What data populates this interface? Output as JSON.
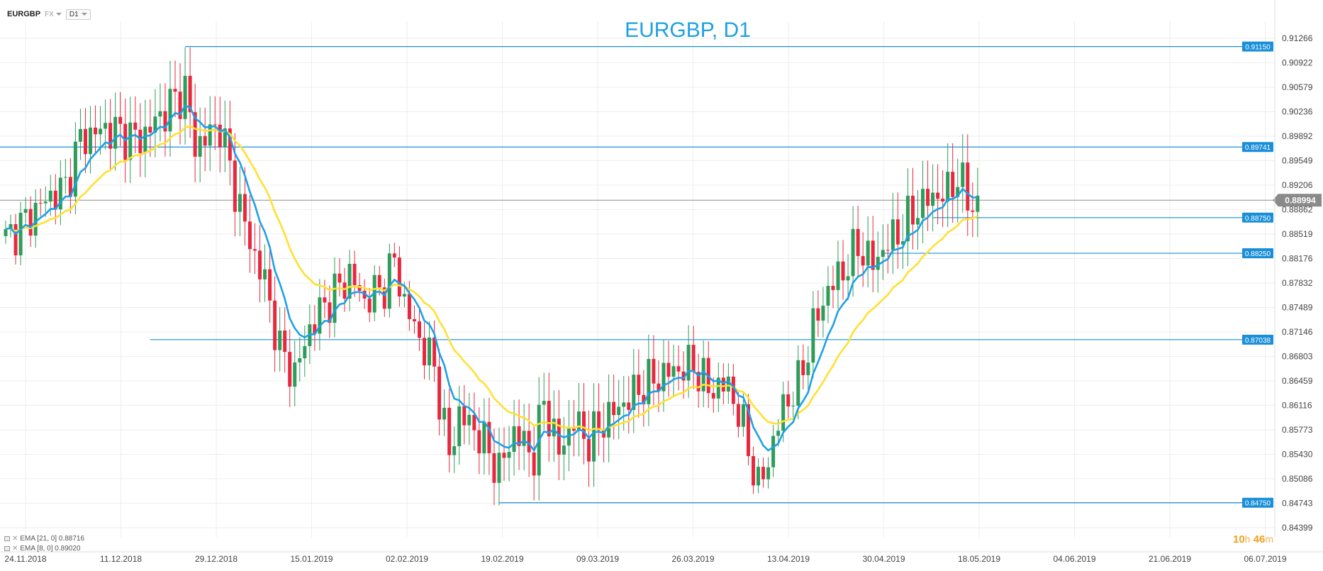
{
  "toolbar": {
    "symbol": "EURGBP",
    "market": "FX",
    "timeframe": "D1"
  },
  "legend": [
    {
      "label": "EMA [21, 0] 0.88716",
      "color": "#ffe033"
    },
    {
      "label": "EMA [8, 0] 0.89020",
      "color": "#1ea0e6"
    }
  ],
  "timer": {
    "hours": "10",
    "h_unit": "h",
    "minutes": "46",
    "m_unit": "m"
  },
  "colors": {
    "bull": "#2e9c5a",
    "bear": "#e8283e",
    "ema8": "#1ea0e6",
    "ema21": "#ffe033",
    "level": "#1a8fd8",
    "current": "#8a8a8a",
    "grid": "#eeeeee",
    "title": "#1ea0e6"
  },
  "chart_data": {
    "type": "candlestick",
    "title": "EURGBP, D1",
    "ylim": [
      0.84399,
      0.91266
    ],
    "y_ticks": [
      "0.91266",
      "0.90922",
      "0.90579",
      "0.90236",
      "0.89892",
      "0.89549",
      "0.89206",
      "0.88862",
      "0.88519",
      "0.88176",
      "0.87832",
      "0.87489",
      "0.87146",
      "0.86803",
      "0.86459",
      "0.86116",
      "0.85773",
      "0.85430",
      "0.85086",
      "0.84743",
      "0.84399"
    ],
    "x_ticks": [
      "24.11.2018",
      "11.12.2018",
      "29.12.2018",
      "15.01.2019",
      "02.02.2019",
      "19.02.2019",
      "09.03.2019",
      "26.03.2019",
      "13.04.2019",
      "30.04.2019",
      "18.05.2019",
      "04.06.2019",
      "21.06.2019",
      "06.07.2019"
    ],
    "current_price": {
      "value": 0.88994,
      "label": "0.88994"
    },
    "levels": [
      {
        "value": 0.9115,
        "label": "0.91150",
        "start_candle": 36
      },
      {
        "value": 0.89741,
        "label": "0.89741",
        "start_candle": 0
      },
      {
        "value": 0.8875,
        "label": "0.88750",
        "start_candle": 186
      },
      {
        "value": 0.8825,
        "label": "0.88250",
        "start_candle": 176
      },
      {
        "value": 0.87038,
        "label": "0.87038",
        "start_candle": 29
      },
      {
        "value": 0.8475,
        "label": "0.84750",
        "start_candle": 99
      }
    ],
    "series": [
      {
        "name": "EMA [21, 0]",
        "type": "line",
        "color": "#ffe033"
      },
      {
        "name": "EMA [8, 0]",
        "type": "line",
        "color": "#1ea0e6"
      }
    ],
    "anchors": [
      [
        0,
        0.8845
      ],
      [
        4,
        0.887
      ],
      [
        8,
        0.89
      ],
      [
        12,
        0.8918
      ],
      [
        15,
        0.8985
      ],
      [
        20,
        0.9
      ],
      [
        27,
        0.8985
      ],
      [
        32,
        0.9025
      ],
      [
        36,
        0.9055
      ],
      [
        38,
        0.8975
      ],
      [
        43,
        0.9005
      ],
      [
        46,
        0.8915
      ],
      [
        49,
        0.884
      ],
      [
        52,
        0.8785
      ],
      [
        55,
        0.869
      ],
      [
        58,
        0.8655
      ],
      [
        61,
        0.872
      ],
      [
        64,
        0.8752
      ],
      [
        69,
        0.8795
      ],
      [
        72,
        0.8758
      ],
      [
        76,
        0.878
      ],
      [
        78,
        0.8815
      ],
      [
        80,
        0.8755
      ],
      [
        83,
        0.8705
      ],
      [
        86,
        0.8665
      ],
      [
        89,
        0.854
      ],
      [
        91,
        0.86
      ],
      [
        95,
        0.857
      ],
      [
        99,
        0.852
      ],
      [
        102,
        0.8575
      ],
      [
        106,
        0.854
      ],
      [
        108,
        0.862
      ],
      [
        111,
        0.8545
      ],
      [
        114,
        0.859
      ],
      [
        117,
        0.856
      ],
      [
        120,
        0.859
      ],
      [
        124,
        0.8615
      ],
      [
        128,
        0.864
      ],
      [
        133,
        0.8658
      ],
      [
        138,
        0.8668
      ],
      [
        141,
        0.8635
      ],
      [
        145,
        0.864
      ],
      [
        148,
        0.858
      ],
      [
        151,
        0.8495
      ],
      [
        153,
        0.8535
      ],
      [
        156,
        0.861
      ],
      [
        159,
        0.864
      ],
      [
        162,
        0.872
      ],
      [
        165,
        0.8775
      ],
      [
        168,
        0.88
      ],
      [
        171,
        0.8835
      ],
      [
        174,
        0.881
      ],
      [
        177,
        0.884
      ],
      [
        180,
        0.886
      ],
      [
        183,
        0.889
      ],
      [
        186,
        0.8905
      ],
      [
        189,
        0.891
      ],
      [
        191,
        0.8935
      ],
      [
        193,
        0.89
      ],
      [
        195,
        0.889
      ]
    ],
    "candle_count": 196
  }
}
